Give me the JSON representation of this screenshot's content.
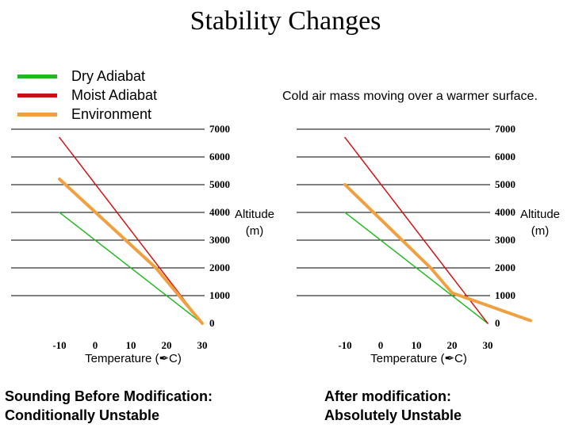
{
  "title": "Stability Changes",
  "legend": [
    {
      "label": "Dry Adiabat",
      "color": "#20b820"
    },
    {
      "label": "Moist Adiabat",
      "color": "#cc1010"
    },
    {
      "label": "Environment",
      "color": "#f0a040"
    }
  ],
  "subtitle": "Cold air mass moving over a warmer surface.",
  "colors": {
    "dry": "#20b820",
    "moist": "#cc1010",
    "env": "#f0a040"
  },
  "chart_data": [
    {
      "type": "line",
      "caption_line1": "Sounding Before Modification:",
      "caption_line2": "Conditionally Unstable",
      "xlabel": "Temperature (✒C)",
      "ylabel_line1": "Altitude",
      "ylabel_line2": "(m)",
      "xlim": [
        -10,
        30
      ],
      "ylim": [
        0,
        7000
      ],
      "xticks": [
        "-10",
        "0",
        "10",
        "20",
        "30"
      ],
      "yticks": [
        "0",
        "1000",
        "2000",
        "3000",
        "4000",
        "5000",
        "6000",
        "7000"
      ],
      "grid": true,
      "series": [
        {
          "name": "Dry Adiabat",
          "x": [
            30,
            -10
          ],
          "y": [
            0,
            4000
          ]
        },
        {
          "name": "Moist Adiabat",
          "x": [
            30,
            -10
          ],
          "y": [
            0,
            6700
          ]
        },
        {
          "name": "Environment",
          "x": [
            30,
            17,
            -10
          ],
          "y": [
            0,
            2000,
            5200
          ]
        }
      ]
    },
    {
      "type": "line",
      "caption_line1": "After modification:",
      "caption_line2": "Absolutely Unstable",
      "xlabel": "Temperature (✒C)",
      "ylabel_line1": "Altitude",
      "ylabel_line2": "(m)",
      "xlim": [
        -10,
        30
      ],
      "ylim": [
        0,
        7000
      ],
      "xticks": [
        "-10",
        "0",
        "10",
        "20",
        "30"
      ],
      "yticks": [
        "0",
        "1000",
        "2000",
        "3000",
        "4000",
        "5000",
        "6000",
        "7000"
      ],
      "grid": true,
      "series": [
        {
          "name": "Dry Adiabat",
          "x": [
            30,
            -10
          ],
          "y": [
            0,
            4000
          ]
        },
        {
          "name": "Moist Adiabat",
          "x": [
            30,
            -10
          ],
          "y": [
            0,
            6700
          ]
        },
        {
          "name": "Environment",
          "x": [
            42,
            20,
            14,
            -10
          ],
          "y": [
            100,
            1100,
            2000,
            5000
          ]
        }
      ]
    }
  ]
}
